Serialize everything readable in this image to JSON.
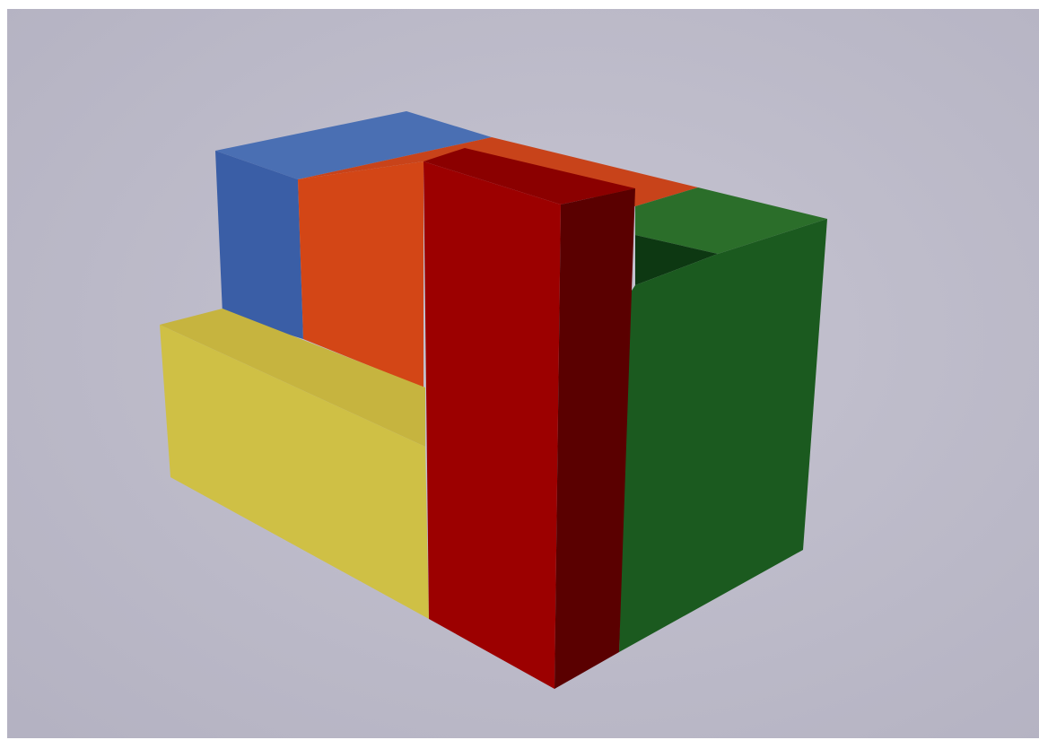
{
  "scene": {
    "blocks": [
      {
        "name": "blue-block",
        "color": "#3d62a8"
      },
      {
        "name": "orange-block",
        "color": "#d64a1c"
      },
      {
        "name": "red-block",
        "color": "#9b0000"
      },
      {
        "name": "green-block",
        "color": "#1b5c1f"
      },
      {
        "name": "yellow-block",
        "color": "#cfc045"
      }
    ],
    "colors": {
      "background": "#b8b6c5",
      "background_light": "#c4c2cf",
      "blue": "#3d62a8",
      "orange": "#d64a1c",
      "red": "#9b0000",
      "green": "#1b5c1f",
      "yellow": "#cfc045"
    }
  }
}
